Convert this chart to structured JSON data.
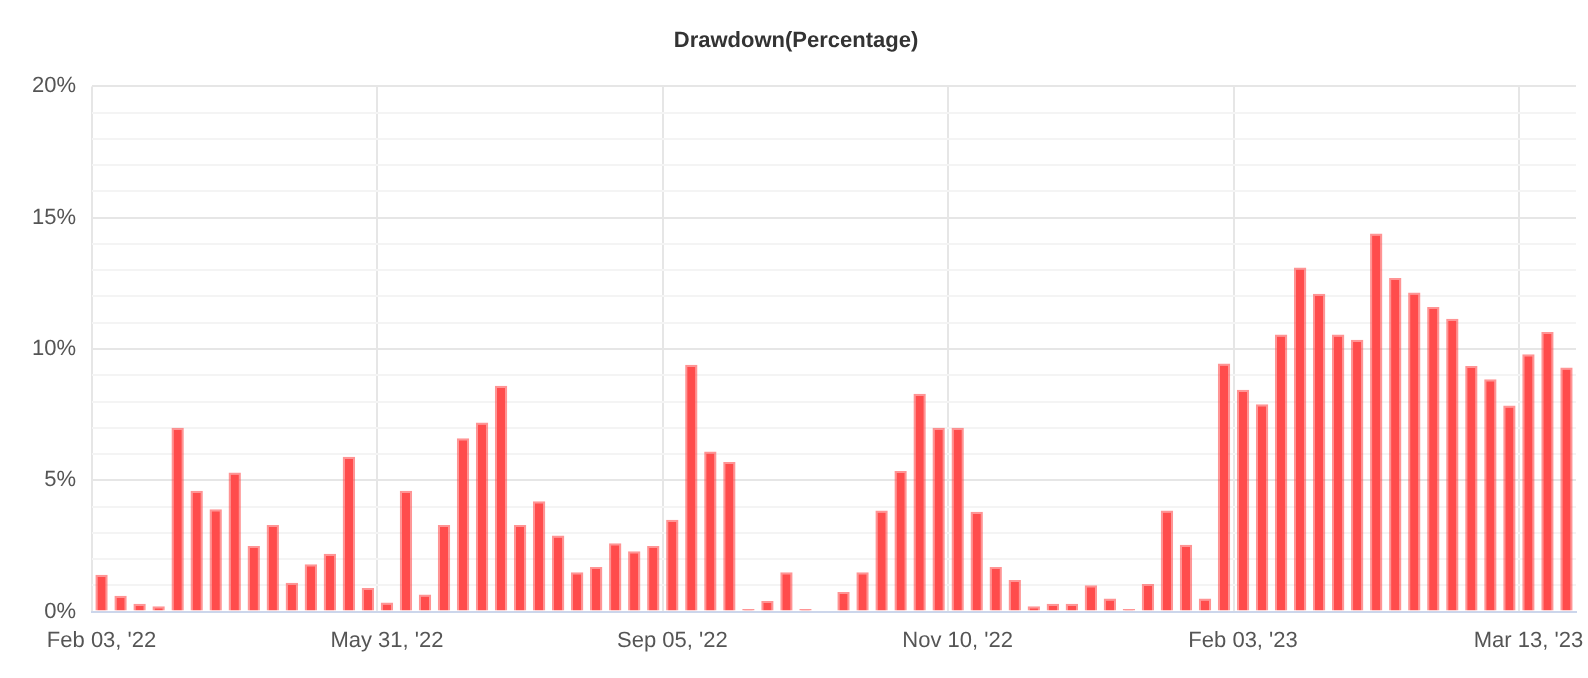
{
  "chart_data": {
    "type": "bar",
    "title": "Drawdown(Percentage)",
    "categories": [
      "Feb 03, '22",
      null,
      null,
      null,
      null,
      null,
      null,
      null,
      null,
      null,
      null,
      null,
      null,
      null,
      null,
      "May 31, '22",
      null,
      null,
      null,
      null,
      null,
      null,
      null,
      null,
      null,
      null,
      null,
      null,
      null,
      null,
      "Sep 05, '22",
      null,
      null,
      null,
      null,
      null,
      null,
      null,
      null,
      null,
      null,
      null,
      null,
      null,
      null,
      "Nov 10, '22",
      null,
      null,
      null,
      null,
      null,
      null,
      null,
      null,
      null,
      null,
      null,
      null,
      null,
      null,
      "Feb 03, '23",
      null,
      null,
      null,
      null,
      null,
      null,
      null,
      null,
      null,
      null,
      null,
      null,
      null,
      null,
      "Mar 13, '23",
      null,
      null
    ],
    "values": [
      1.4,
      0.6,
      0.3,
      0.2,
      7.0,
      4.6,
      3.9,
      5.3,
      2.5,
      3.3,
      1.1,
      1.8,
      2.2,
      5.9,
      0.9,
      0.35,
      4.6,
      0.65,
      3.3,
      6.6,
      7.2,
      8.6,
      3.3,
      4.2,
      2.9,
      1.5,
      1.7,
      2.6,
      2.3,
      2.5,
      3.5,
      9.4,
      6.1,
      5.7,
      0.1,
      0.4,
      1.5,
      0.1,
      0,
      0.75,
      1.5,
      3.85,
      5.35,
      8.3,
      7.0,
      7.0,
      3.8,
      1.7,
      1.2,
      0.2,
      0.3,
      0.3,
      1.0,
      0.5,
      0.1,
      1.05,
      3.85,
      2.55,
      0.5,
      9.45,
      8.45,
      7.9,
      10.55,
      13.1,
      12.1,
      10.55,
      10.35,
      14.4,
      12.7,
      12.15,
      11.6,
      11.15,
      9.35,
      8.85,
      7.85,
      9.8,
      10.65,
      9.3
    ],
    "color": "#ff4c4c",
    "ylim": [
      0,
      20
    ],
    "yticks": [
      {
        "value": 0,
        "label": "0%"
      },
      {
        "value": 1,
        "label": null
      },
      {
        "value": 2,
        "label": null
      },
      {
        "value": 3,
        "label": null
      },
      {
        "value": 4,
        "label": null
      },
      {
        "value": 5,
        "label": "5%"
      },
      {
        "value": 6,
        "label": null
      },
      {
        "value": 7,
        "label": null
      },
      {
        "value": 8,
        "label": null
      },
      {
        "value": 9,
        "label": null
      },
      {
        "value": 10,
        "label": "10%"
      },
      {
        "value": 11,
        "label": null
      },
      {
        "value": 12,
        "label": null
      },
      {
        "value": 13,
        "label": null
      },
      {
        "value": 14,
        "label": null
      },
      {
        "value": 15,
        "label": "15%"
      },
      {
        "value": 16,
        "label": null
      },
      {
        "value": 17,
        "label": null
      },
      {
        "value": 18,
        "label": null
      },
      {
        "value": 19,
        "label": null
      },
      {
        "value": 20,
        "label": "20%"
      }
    ],
    "grid": true
  }
}
